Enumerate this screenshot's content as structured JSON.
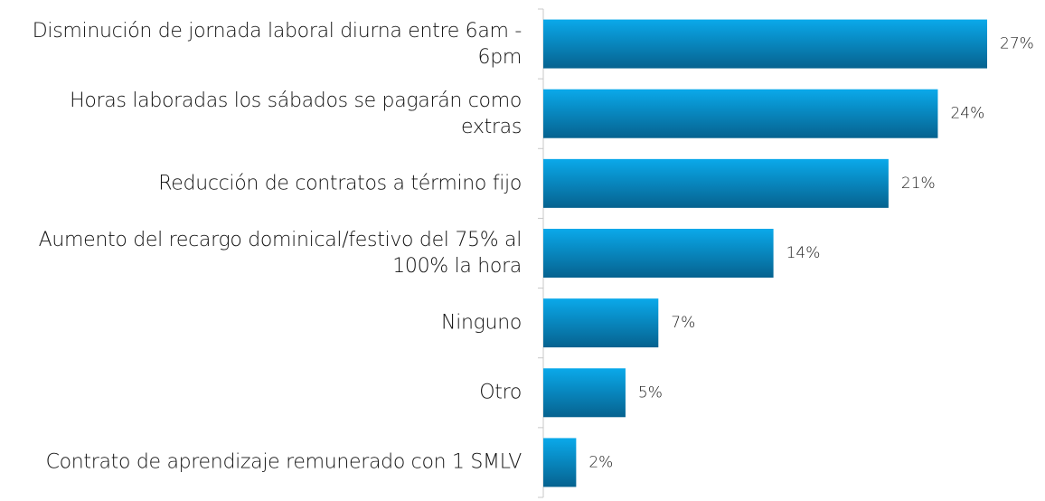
{
  "chart_data": {
    "type": "bar",
    "orientation": "horizontal",
    "categories": [
      "Disminución de jornada laboral diurna entre 6am - 6pm",
      "Horas laboradas los sábados se pagarán como extras",
      "Reducción de contratos a término fijo",
      "Aumento del recargo dominical/festivo del 75% al 100% la hora",
      "Ninguno",
      "Otro",
      "Contrato de aprendizaje remunerado con 1 SMLV"
    ],
    "values": [
      27,
      24,
      21,
      14,
      7,
      5,
      2
    ],
    "value_labels": [
      "27%",
      "24%",
      "21%",
      "14%",
      "7%",
      "5%",
      "2%"
    ],
    "color": "#0aa9ea"
  }
}
